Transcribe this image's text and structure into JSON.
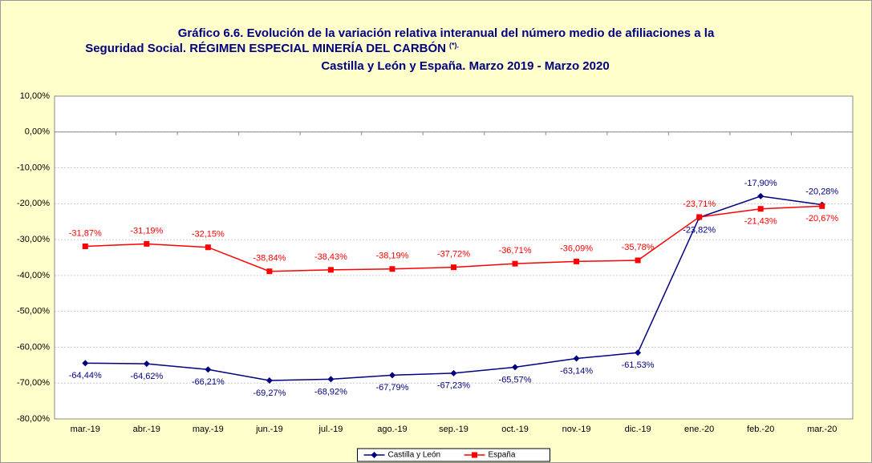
{
  "chart_data": {
    "type": "line",
    "title_lines": [
      "Gráfico 6.6. Evolución de la variación relativa interanual del número medio de  afiliaciones a la",
      "Seguridad Social. RÉGIMEN ESPECIAL MINERÍA DEL CARBÓN",
      "Castilla y León y España. Marzo 2019 - Marzo 2020"
    ],
    "title_note": "(*).",
    "categories": [
      "mar.-19",
      "abr.-19",
      "may.-19",
      "jun.-19",
      "jul.-19",
      "ago.-19",
      "sep.-19",
      "oct.-19",
      "nov.-19",
      "dic.-19",
      "ene.-20",
      "feb.-20",
      "mar.-20"
    ],
    "series": [
      {
        "name": "Castilla y León",
        "color": "#000080",
        "marker": "diamond",
        "values": [
          -64.44,
          -64.62,
          -66.21,
          -69.27,
          -68.92,
          -67.79,
          -67.23,
          -65.57,
          -63.14,
          -61.53,
          -23.82,
          -17.9,
          -20.28
        ],
        "value_labels": [
          "-64,44%",
          "-64,62%",
          "-66,21%",
          "-69,27%",
          "-68,92%",
          "-67,79%",
          "-67,23%",
          "-65,57%",
          "-63,14%",
          "-61,53%",
          "-23,82%",
          "-17,90%",
          "-20,28%"
        ]
      },
      {
        "name": "España",
        "color": "#ff0000",
        "marker": "square",
        "values": [
          -31.87,
          -31.19,
          -32.15,
          -38.84,
          -38.43,
          -38.19,
          -37.72,
          -36.71,
          -36.09,
          -35.78,
          -23.71,
          -21.43,
          -20.67
        ],
        "value_labels": [
          "-31,87%",
          "-31,19%",
          "-32,15%",
          "-38,84%",
          "-38,43%",
          "-38,19%",
          "-37,72%",
          "-36,71%",
          "-36,09%",
          "-35,78%",
          "-23,71%",
          "-21,43%",
          "-20,67%"
        ]
      }
    ],
    "ylim": [
      -80,
      10
    ],
    "yticks": [
      {
        "value": -80,
        "label": "-80,00%"
      },
      {
        "value": -70,
        "label": "-70,00%"
      },
      {
        "value": -60,
        "label": "-60,00%"
      },
      {
        "value": -50,
        "label": "-50,00%"
      },
      {
        "value": -40,
        "label": "-40,00%"
      },
      {
        "value": -30,
        "label": "-30,00%"
      },
      {
        "value": -20,
        "label": "-20,00%"
      },
      {
        "value": -10,
        "label": "-10,00%"
      },
      {
        "value": 0,
        "label": "0,00%"
      },
      {
        "value": 10,
        "label": "10,00%"
      }
    ],
    "grid": true,
    "legend": "bottom"
  }
}
